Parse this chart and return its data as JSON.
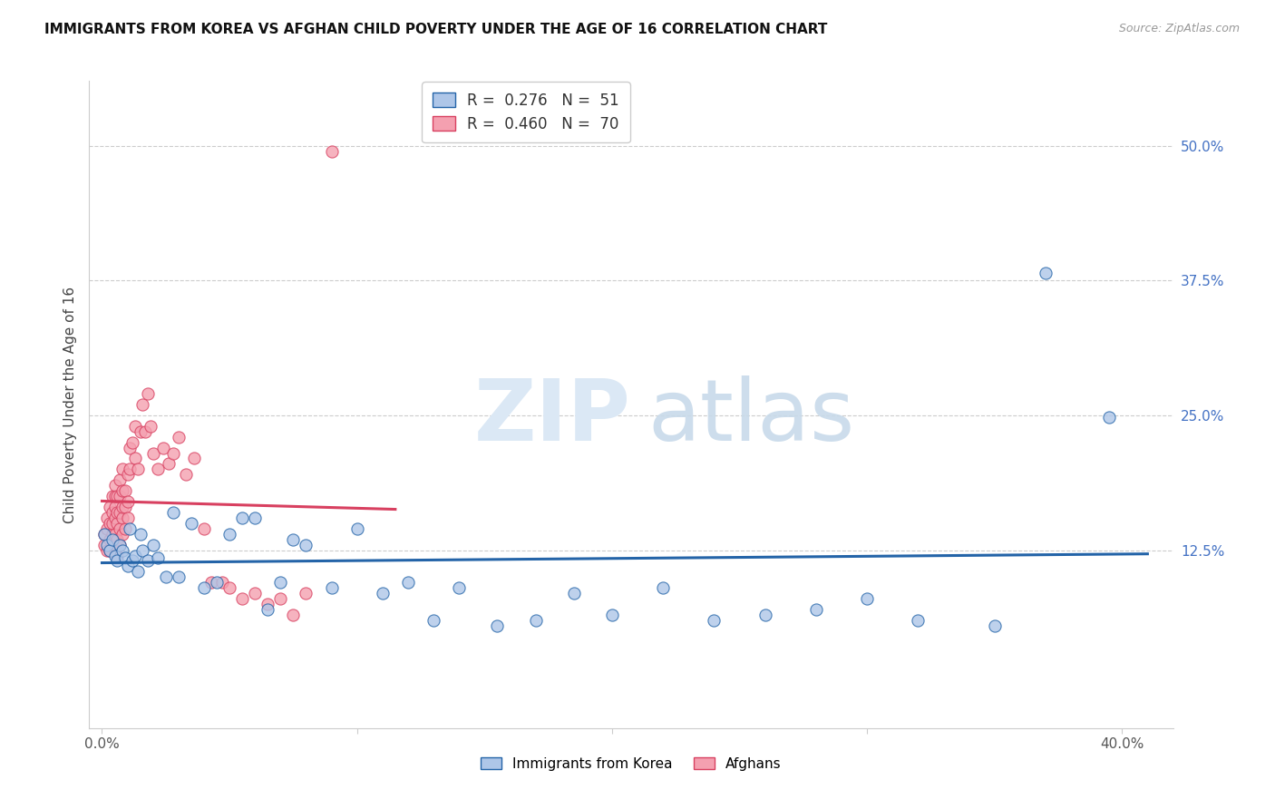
{
  "title": "IMMIGRANTS FROM KOREA VS AFGHAN CHILD POVERTY UNDER THE AGE OF 16 CORRELATION CHART",
  "source": "Source: ZipAtlas.com",
  "ylabel": "Child Poverty Under the Age of 16",
  "ytick_labels": [
    "12.5%",
    "25.0%",
    "37.5%",
    "50.0%"
  ],
  "ytick_values": [
    0.125,
    0.25,
    0.375,
    0.5
  ],
  "xlim": [
    -0.005,
    0.42
  ],
  "ylim": [
    -0.04,
    0.56
  ],
  "legend1_R": "0.276",
  "legend1_N": "51",
  "legend2_R": "0.460",
  "legend2_N": "70",
  "legend_label1": "Immigrants from Korea",
  "legend_label2": "Afghans",
  "color_korea": "#aec6e8",
  "color_afghan": "#f4a0b0",
  "color_korea_line": "#2464a8",
  "color_afghan_line": "#d84060",
  "korea_x": [
    0.001,
    0.002,
    0.003,
    0.004,
    0.005,
    0.006,
    0.007,
    0.008,
    0.009,
    0.01,
    0.011,
    0.012,
    0.013,
    0.014,
    0.015,
    0.016,
    0.018,
    0.02,
    0.022,
    0.025,
    0.028,
    0.03,
    0.035,
    0.04,
    0.045,
    0.05,
    0.055,
    0.06,
    0.065,
    0.07,
    0.075,
    0.08,
    0.09,
    0.1,
    0.11,
    0.12,
    0.13,
    0.14,
    0.155,
    0.17,
    0.185,
    0.2,
    0.22,
    0.24,
    0.26,
    0.28,
    0.3,
    0.32,
    0.35,
    0.37,
    0.395
  ],
  "korea_y": [
    0.14,
    0.13,
    0.125,
    0.135,
    0.12,
    0.115,
    0.13,
    0.125,
    0.118,
    0.11,
    0.145,
    0.115,
    0.12,
    0.105,
    0.14,
    0.125,
    0.115,
    0.13,
    0.118,
    0.1,
    0.16,
    0.1,
    0.15,
    0.09,
    0.095,
    0.14,
    0.155,
    0.155,
    0.07,
    0.095,
    0.135,
    0.13,
    0.09,
    0.145,
    0.085,
    0.095,
    0.06,
    0.09,
    0.055,
    0.06,
    0.085,
    0.065,
    0.09,
    0.06,
    0.065,
    0.07,
    0.08,
    0.06,
    0.055,
    0.382,
    0.248
  ],
  "afghan_x": [
    0.001,
    0.001,
    0.002,
    0.002,
    0.002,
    0.003,
    0.003,
    0.003,
    0.003,
    0.004,
    0.004,
    0.004,
    0.004,
    0.005,
    0.005,
    0.005,
    0.005,
    0.005,
    0.005,
    0.006,
    0.006,
    0.006,
    0.006,
    0.006,
    0.007,
    0.007,
    0.007,
    0.007,
    0.007,
    0.008,
    0.008,
    0.008,
    0.008,
    0.008,
    0.009,
    0.009,
    0.009,
    0.01,
    0.01,
    0.01,
    0.011,
    0.011,
    0.012,
    0.013,
    0.013,
    0.014,
    0.015,
    0.016,
    0.017,
    0.018,
    0.019,
    0.02,
    0.022,
    0.024,
    0.026,
    0.028,
    0.03,
    0.033,
    0.036,
    0.04,
    0.043,
    0.047,
    0.05,
    0.055,
    0.06,
    0.065,
    0.07,
    0.075,
    0.08,
    0.09
  ],
  "afghan_y": [
    0.14,
    0.13,
    0.145,
    0.125,
    0.155,
    0.135,
    0.15,
    0.165,
    0.125,
    0.14,
    0.15,
    0.16,
    0.175,
    0.13,
    0.14,
    0.155,
    0.165,
    0.175,
    0.185,
    0.12,
    0.135,
    0.15,
    0.16,
    0.175,
    0.13,
    0.145,
    0.16,
    0.175,
    0.19,
    0.14,
    0.155,
    0.165,
    0.18,
    0.2,
    0.145,
    0.165,
    0.18,
    0.155,
    0.17,
    0.195,
    0.2,
    0.22,
    0.225,
    0.21,
    0.24,
    0.2,
    0.235,
    0.26,
    0.235,
    0.27,
    0.24,
    0.215,
    0.2,
    0.22,
    0.205,
    0.215,
    0.23,
    0.195,
    0.21,
    0.145,
    0.095,
    0.095,
    0.09,
    0.08,
    0.085,
    0.075,
    0.08,
    0.065,
    0.085,
    0.495
  ],
  "korea_line_x": [
    0.0,
    0.41
  ],
  "afghan_line_x": [
    0.0,
    0.115
  ],
  "grid_color": "#cccccc",
  "spine_color": "#cccccc"
}
